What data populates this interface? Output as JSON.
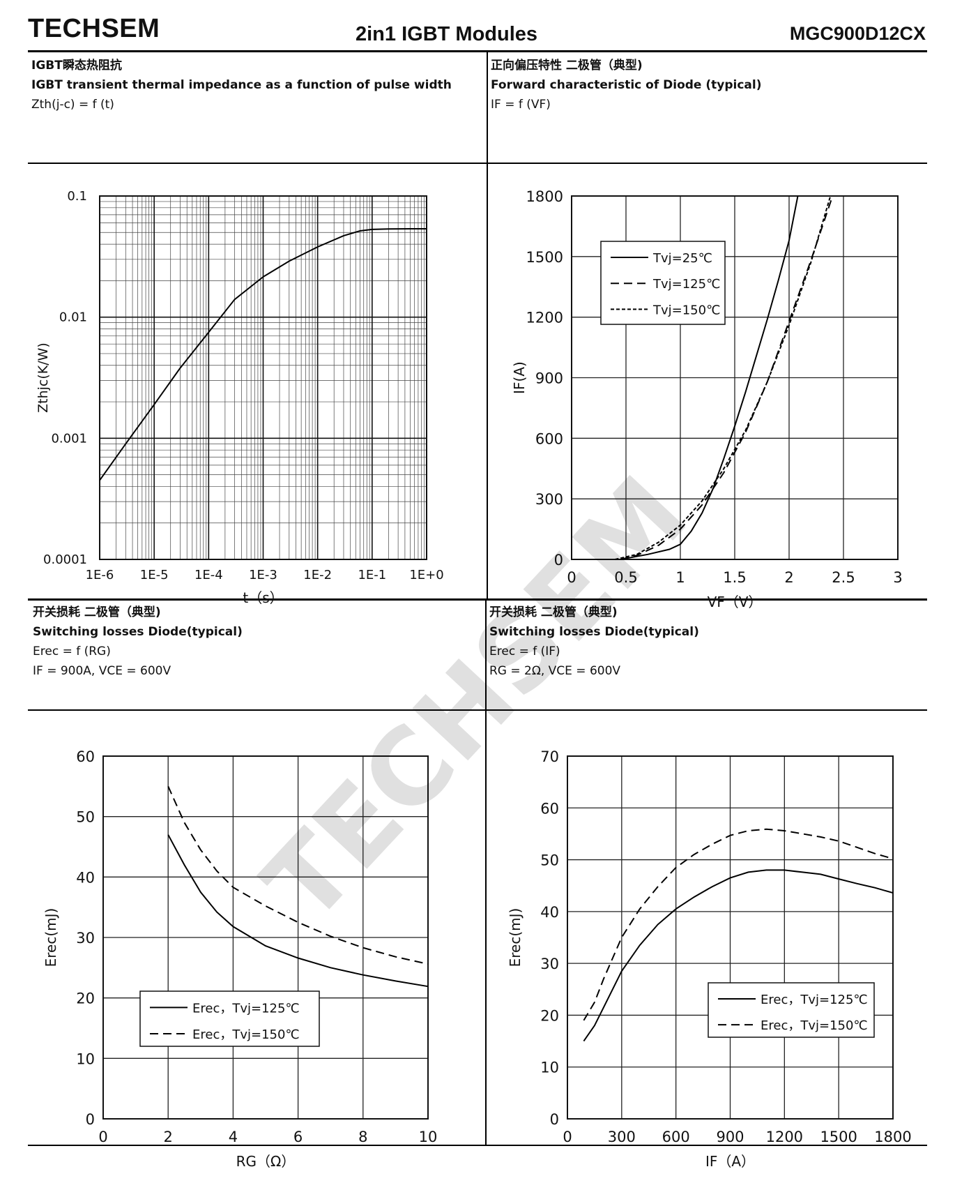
{
  "header": {
    "brand": "TECHSEM",
    "title": "2in1 IGBT Modules",
    "part_number": "MGC900D12CX"
  },
  "watermark": "TECHSEM",
  "panels": [
    {
      "title_cn": "IGBT瞬态热阻抗",
      "title_en": "IGBT transient thermal impedance as a function of pulse width",
      "func": "Zth(j-c) = f (t)",
      "conditions": ""
    },
    {
      "title_cn": "正向偏压特性 二极管（典型)",
      "title_en": "Forward characteristic of Diode (typical)",
      "func": "IF = f (VF)",
      "conditions": ""
    },
    {
      "title_cn": "开关损耗 二极管（典型)",
      "title_en": "Switching losses Diode(typical)",
      "func": "Erec = f (RG)",
      "conditions": "IF = 900A, VCE = 600V"
    },
    {
      "title_cn": "开关损耗 二极管（典型)",
      "title_en": "Switching losses Diode(typical)",
      "func": "Erec = f (IF)",
      "conditions": "RG = 2Ω, VCE = 600V"
    }
  ],
  "chart_data": [
    {
      "type": "line",
      "title": "IGBT transient thermal impedance",
      "xlabel": "t（s）",
      "ylabel": "Zthjc(K/W)",
      "xscale": "log",
      "yscale": "log",
      "xlim": [
        1e-06,
        1
      ],
      "ylim": [
        0.0001,
        0.1
      ],
      "xticks": [
        1e-06,
        1e-05,
        0.0001,
        0.001,
        0.01,
        0.1,
        1
      ],
      "xtick_labels": [
        "1E-6",
        "1E-5",
        "1E-4",
        "1E-3",
        "1E-2",
        "1E-1",
        "1E+0"
      ],
      "yticks": [
        0.0001,
        0.001,
        0.01,
        0.1
      ],
      "ytick_labels": [
        "0.0001",
        "0.001",
        "0.01",
        "0.1"
      ],
      "series": [
        {
          "name": "Zth(j-c)",
          "style": "solid",
          "x": [
            1e-06,
            3e-06,
            1e-05,
            3e-05,
            0.0001,
            0.0003,
            0.001,
            0.003,
            0.01,
            0.03,
            0.06,
            0.1,
            0.2,
            0.5,
            1
          ],
          "y": [
            0.00045,
            0.0009,
            0.0019,
            0.0038,
            0.0075,
            0.014,
            0.0215,
            0.029,
            0.038,
            0.047,
            0.0515,
            0.053,
            0.0535,
            0.0536,
            0.0536
          ]
        }
      ]
    },
    {
      "type": "line",
      "title": "Forward characteristic of Diode",
      "xlabel": "VF（V）",
      "ylabel": "IF(A)",
      "xlim": [
        0,
        3
      ],
      "ylim": [
        0,
        1800
      ],
      "xticks": [
        0,
        0.5,
        1,
        1.5,
        2,
        2.5,
        3
      ],
      "yticks": [
        0,
        300,
        600,
        900,
        1200,
        1500,
        1800
      ],
      "legend": "top-left",
      "series": [
        {
          "name": "Tvj=25℃",
          "style": "solid",
          "x": [
            0.45,
            0.7,
            0.9,
            1.0,
            1.1,
            1.2,
            1.3,
            1.4,
            1.5,
            1.6,
            1.7,
            1.8,
            1.9,
            2.0,
            2.08
          ],
          "y": [
            0,
            25,
            50,
            75,
            140,
            230,
            350,
            500,
            660,
            830,
            1010,
            1190,
            1380,
            1580,
            1800
          ]
        },
        {
          "name": "Tvj=125℃",
          "style": "dashed",
          "x": [
            0.45,
            0.6,
            0.8,
            1.0,
            1.2,
            1.4,
            1.6,
            1.8,
            2.0,
            2.2,
            2.4
          ],
          "y": [
            0,
            20,
            70,
            150,
            270,
            430,
            630,
            880,
            1180,
            1480,
            1800
          ]
        },
        {
          "name": "Tvj=150℃",
          "style": "dotted",
          "x": [
            0.4,
            0.6,
            0.8,
            1.0,
            1.2,
            1.4,
            1.6,
            1.8,
            2.0,
            2.2,
            2.38
          ],
          "y": [
            0,
            25,
            85,
            170,
            290,
            450,
            640,
            880,
            1160,
            1470,
            1800
          ]
        }
      ]
    },
    {
      "type": "line",
      "title": "Switching losses Diode vs RG",
      "xlabel": "RG（Ω）",
      "ylabel": "Erec(mJ)",
      "xlim": [
        0,
        10
      ],
      "ylim": [
        0,
        60
      ],
      "xticks": [
        0,
        2,
        4,
        6,
        8,
        10
      ],
      "yticks": [
        0,
        10,
        20,
        30,
        40,
        50,
        60
      ],
      "legend": "bottom-left",
      "series": [
        {
          "name": "Erec，Tvj=125℃",
          "style": "solid",
          "x": [
            2,
            2.5,
            3,
            3.5,
            4,
            5,
            6,
            7,
            8,
            9,
            10
          ],
          "y": [
            47,
            42,
            37.5,
            34.2,
            31.8,
            28.6,
            26.6,
            25,
            23.8,
            22.8,
            21.9
          ]
        },
        {
          "name": "Erec，Tvj=150℃",
          "style": "dashed",
          "x": [
            2,
            2.5,
            3,
            3.5,
            4,
            5,
            6,
            7,
            8,
            9,
            10
          ],
          "y": [
            55,
            49,
            44.5,
            41,
            38.3,
            35.2,
            32.5,
            30.2,
            28.3,
            26.8,
            25.6
          ]
        }
      ]
    },
    {
      "type": "line",
      "title": "Switching losses Diode vs IF",
      "xlabel": "IF（A）",
      "ylabel": "Erec(mJ)",
      "xlim": [
        0,
        1800
      ],
      "ylim": [
        0,
        70
      ],
      "xticks": [
        0,
        300,
        600,
        900,
        1200,
        1500,
        1800
      ],
      "yticks": [
        0,
        10,
        20,
        30,
        40,
        50,
        60,
        70
      ],
      "legend": "bottom-right",
      "series": [
        {
          "name": "Erec，Tvj=125℃",
          "style": "solid",
          "x": [
            90,
            150,
            200,
            300,
            400,
            500,
            600,
            700,
            800,
            900,
            1000,
            1100,
            1200,
            1300,
            1400,
            1500,
            1600,
            1700,
            1800
          ],
          "y": [
            15,
            18,
            21.5,
            28.5,
            33.5,
            37.5,
            40.5,
            42.8,
            44.8,
            46.5,
            47.6,
            48,
            48,
            47.6,
            47.2,
            46.3,
            45.4,
            44.6,
            43.6
          ]
        },
        {
          "name": "Erec，Tvj=150℃",
          "style": "dashed",
          "x": [
            90,
            150,
            200,
            300,
            400,
            500,
            600,
            700,
            800,
            900,
            1000,
            1100,
            1200,
            1300,
            1400,
            1500,
            1600,
            1700,
            1800
          ],
          "y": [
            19,
            22.5,
            27,
            35,
            40.5,
            44.8,
            48.5,
            51,
            53,
            54.7,
            55.6,
            55.9,
            55.6,
            55,
            54.4,
            53.6,
            52.4,
            51.2,
            50.2
          ]
        }
      ]
    }
  ]
}
